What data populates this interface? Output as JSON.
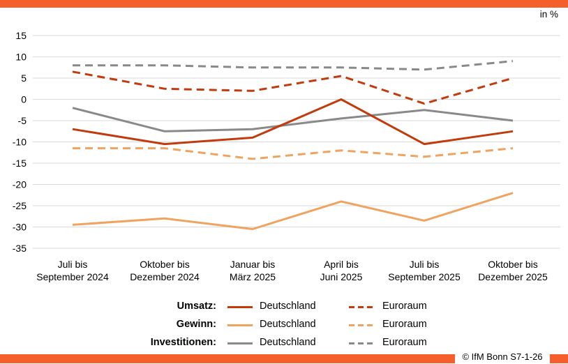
{
  "header": {
    "bar_color": "#f45f2c",
    "unit_label": "in %"
  },
  "footer": {
    "copyright": "© IfM Bonn S7-1-26"
  },
  "colors": {
    "umsatz": "#c23b0e",
    "gewinn": "#f0a35f",
    "investitionen": "#898989",
    "gridline": "#d9d9d9",
    "accent_bar": "#f45f2c"
  },
  "legend": {
    "rows": [
      {
        "label": "Umsatz:",
        "deutschland": "Deutschland",
        "euroraum": "Euroraum",
        "color": "#c23b0e"
      },
      {
        "label": "Gewinn:",
        "deutschland": "Deutschland",
        "euroraum": "Euroraum",
        "color": "#f0a35f"
      },
      {
        "label": "Investitionen:",
        "deutschland": "Deutschland",
        "euroraum": "Euroraum",
        "color": "#898989"
      }
    ]
  },
  "chart_data": {
    "type": "line",
    "title": "",
    "annotation": "in %",
    "xlabel": "",
    "ylabel": "in %",
    "grid": true,
    "legend_position": "bottom",
    "ylim": [
      -35,
      15
    ],
    "y_ticks": [
      15,
      10,
      5,
      0,
      -5,
      -10,
      -15,
      -20,
      -25,
      -30,
      -35
    ],
    "categories": [
      [
        "Juli bis",
        "September 2024"
      ],
      [
        "Oktober bis",
        "Dezember 2024"
      ],
      [
        "Januar bis",
        "März 2025"
      ],
      [
        "April bis",
        "Juni 2025"
      ],
      [
        "Juli bis",
        "September 2025"
      ],
      [
        "Oktober bis",
        "Dezember 2025"
      ]
    ],
    "series": [
      {
        "name": "Umsatz Deutschland",
        "group": "Umsatz",
        "region": "Deutschland",
        "style": "solid",
        "color": "#c23b0e",
        "values": [
          -7,
          -10.5,
          -9,
          0,
          -10.5,
          -7.5
        ]
      },
      {
        "name": "Umsatz Euroraum",
        "group": "Umsatz",
        "region": "Euroraum",
        "style": "dashed",
        "color": "#c23b0e",
        "values": [
          6.5,
          2.5,
          2,
          5.5,
          -1,
          5
        ]
      },
      {
        "name": "Gewinn Deutschland",
        "group": "Gewinn",
        "region": "Deutschland",
        "style": "solid",
        "color": "#f0a35f",
        "values": [
          -29.5,
          -28,
          -30.5,
          -24,
          -28.5,
          -22
        ]
      },
      {
        "name": "Gewinn Euroraum",
        "group": "Gewinn",
        "region": "Euroraum",
        "style": "dashed",
        "color": "#f0a35f",
        "values": [
          -11.5,
          -11.5,
          -14,
          -12,
          -13.5,
          -11.5
        ]
      },
      {
        "name": "Investitionen Deutschland",
        "group": "Investitionen",
        "region": "Deutschland",
        "style": "solid",
        "color": "#898989",
        "values": [
          -2,
          -7.5,
          -7,
          -4.5,
          -2.5,
          -5
        ]
      },
      {
        "name": "Investitionen Euroraum",
        "group": "Investitionen",
        "region": "Euroraum",
        "style": "dashed",
        "color": "#898989",
        "values": [
          8,
          8,
          7.5,
          7.5,
          7,
          9
        ]
      }
    ]
  }
}
